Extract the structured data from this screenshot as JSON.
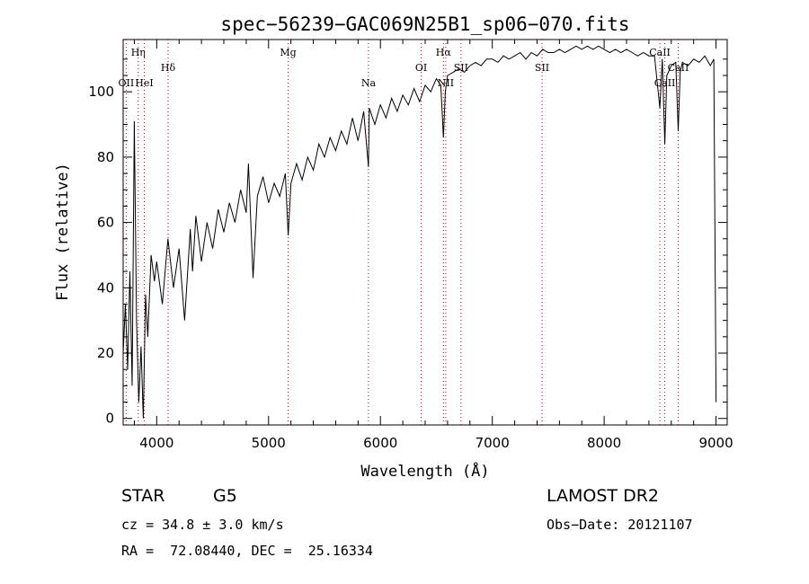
{
  "chart_data": {
    "type": "line",
    "title": "spec−56239−GAC069N25B1_sp06−070.fits",
    "xlabel": "Wavelength (Å)",
    "ylabel": "Flux (relative)",
    "xlim": [
      3700,
      9100
    ],
    "ylim": [
      -2,
      116
    ],
    "xticks": [
      4000,
      5000,
      6000,
      7000,
      8000,
      9000
    ],
    "yticks": [
      0,
      20,
      40,
      60,
      80,
      100
    ],
    "grid": false,
    "series": [
      {
        "x": [
          3700,
          3720,
          3740,
          3760,
          3780,
          3800,
          3820,
          3840,
          3860,
          3880,
          3900,
          3920,
          3950,
          3980,
          4000,
          4050,
          4100,
          4150,
          4200,
          4250,
          4300,
          4320,
          4350,
          4400,
          4450,
          4500,
          4550,
          4600,
          4650,
          4700,
          4750,
          4800,
          4820,
          4861,
          4900,
          4950,
          5000,
          5050,
          5100,
          5150,
          5175,
          5200,
          5250,
          5300,
          5350,
          5400,
          5450,
          5500,
          5550,
          5600,
          5650,
          5700,
          5750,
          5800,
          5850,
          5893,
          5900,
          5950,
          6000,
          6050,
          6100,
          6150,
          6200,
          6250,
          6300,
          6350,
          6400,
          6450,
          6500,
          6540,
          6563,
          6580,
          6600,
          6650,
          6700,
          6750,
          6800,
          6850,
          6900,
          6950,
          7000,
          7050,
          7100,
          7150,
          7200,
          7250,
          7300,
          7350,
          7400,
          7450,
          7500,
          7550,
          7600,
          7650,
          7700,
          7750,
          7800,
          7850,
          7900,
          7950,
          8000,
          8050,
          8100,
          8150,
          8200,
          8250,
          8300,
          8350,
          8400,
          8450,
          8498,
          8520,
          8542,
          8560,
          8600,
          8640,
          8662,
          8680,
          8700,
          8750,
          8800,
          8850,
          8900,
          8950,
          8980,
          9000
        ],
        "values": [
          20,
          35,
          15,
          45,
          10,
          91,
          30,
          5,
          22,
          0,
          38,
          25,
          50,
          42,
          48,
          35,
          55,
          40,
          52,
          30,
          58,
          45,
          62,
          48,
          60,
          52,
          64,
          57,
          66,
          60,
          70,
          63,
          78,
          43,
          68,
          74,
          66,
          72,
          68,
          75,
          56,
          72,
          78,
          73,
          80,
          76,
          84,
          80,
          86,
          82,
          88,
          84,
          92,
          85,
          94,
          77,
          95,
          90,
          96,
          92,
          98,
          94,
          99,
          96,
          101,
          97,
          102,
          100,
          104,
          102,
          86,
          100,
          105,
          106,
          107,
          106,
          108,
          109,
          108,
          110,
          110,
          109,
          111,
          110,
          111,
          112,
          110,
          112,
          111,
          113,
          112,
          112,
          113,
          112,
          113,
          114,
          113,
          114,
          113,
          114,
          113,
          112,
          113,
          112,
          113,
          112,
          111,
          112,
          111,
          111,
          95,
          110,
          84,
          105,
          108,
          109,
          88,
          106,
          109,
          108,
          110,
          109,
          111,
          108,
          110,
          5
        ]
      }
    ],
    "lines": [
      {
        "wl": 3727,
        "label": "OII",
        "row": 3
      },
      {
        "wl": 3835,
        "label": "Hη",
        "row": 1
      },
      {
        "wl": 3889,
        "label": "HeI",
        "row": 3
      },
      {
        "wl": 4102,
        "label": "Hδ",
        "row": 2
      },
      {
        "wl": 5175,
        "label": "Mg",
        "row": 1
      },
      {
        "wl": 5893,
        "label": "Na",
        "row": 3
      },
      {
        "wl": 6364,
        "label": "OI",
        "row": 2
      },
      {
        "wl": 6563,
        "label": "Hα",
        "row": 1
      },
      {
        "wl": 6584,
        "label": "NII",
        "row": 3
      },
      {
        "wl": 6720,
        "label": "SII",
        "row": 2
      },
      {
        "wl": 7445,
        "label": "SII",
        "row": 2
      },
      {
        "wl": 8498,
        "label": "CaII",
        "row": 1
      },
      {
        "wl": 8542,
        "label": "CaII",
        "row": 3
      },
      {
        "wl": 8662,
        "label": "CaII",
        "row": 2
      }
    ]
  },
  "info": {
    "object_class": "STAR",
    "subclass": "G5",
    "survey": "LAMOST DR2",
    "redshift": "cz = 34.8 ± 3.0 km/s",
    "obs_date": "Obs−Date: 20121107",
    "coords": "RA =  72.08440, DEC =  25.16334"
  }
}
